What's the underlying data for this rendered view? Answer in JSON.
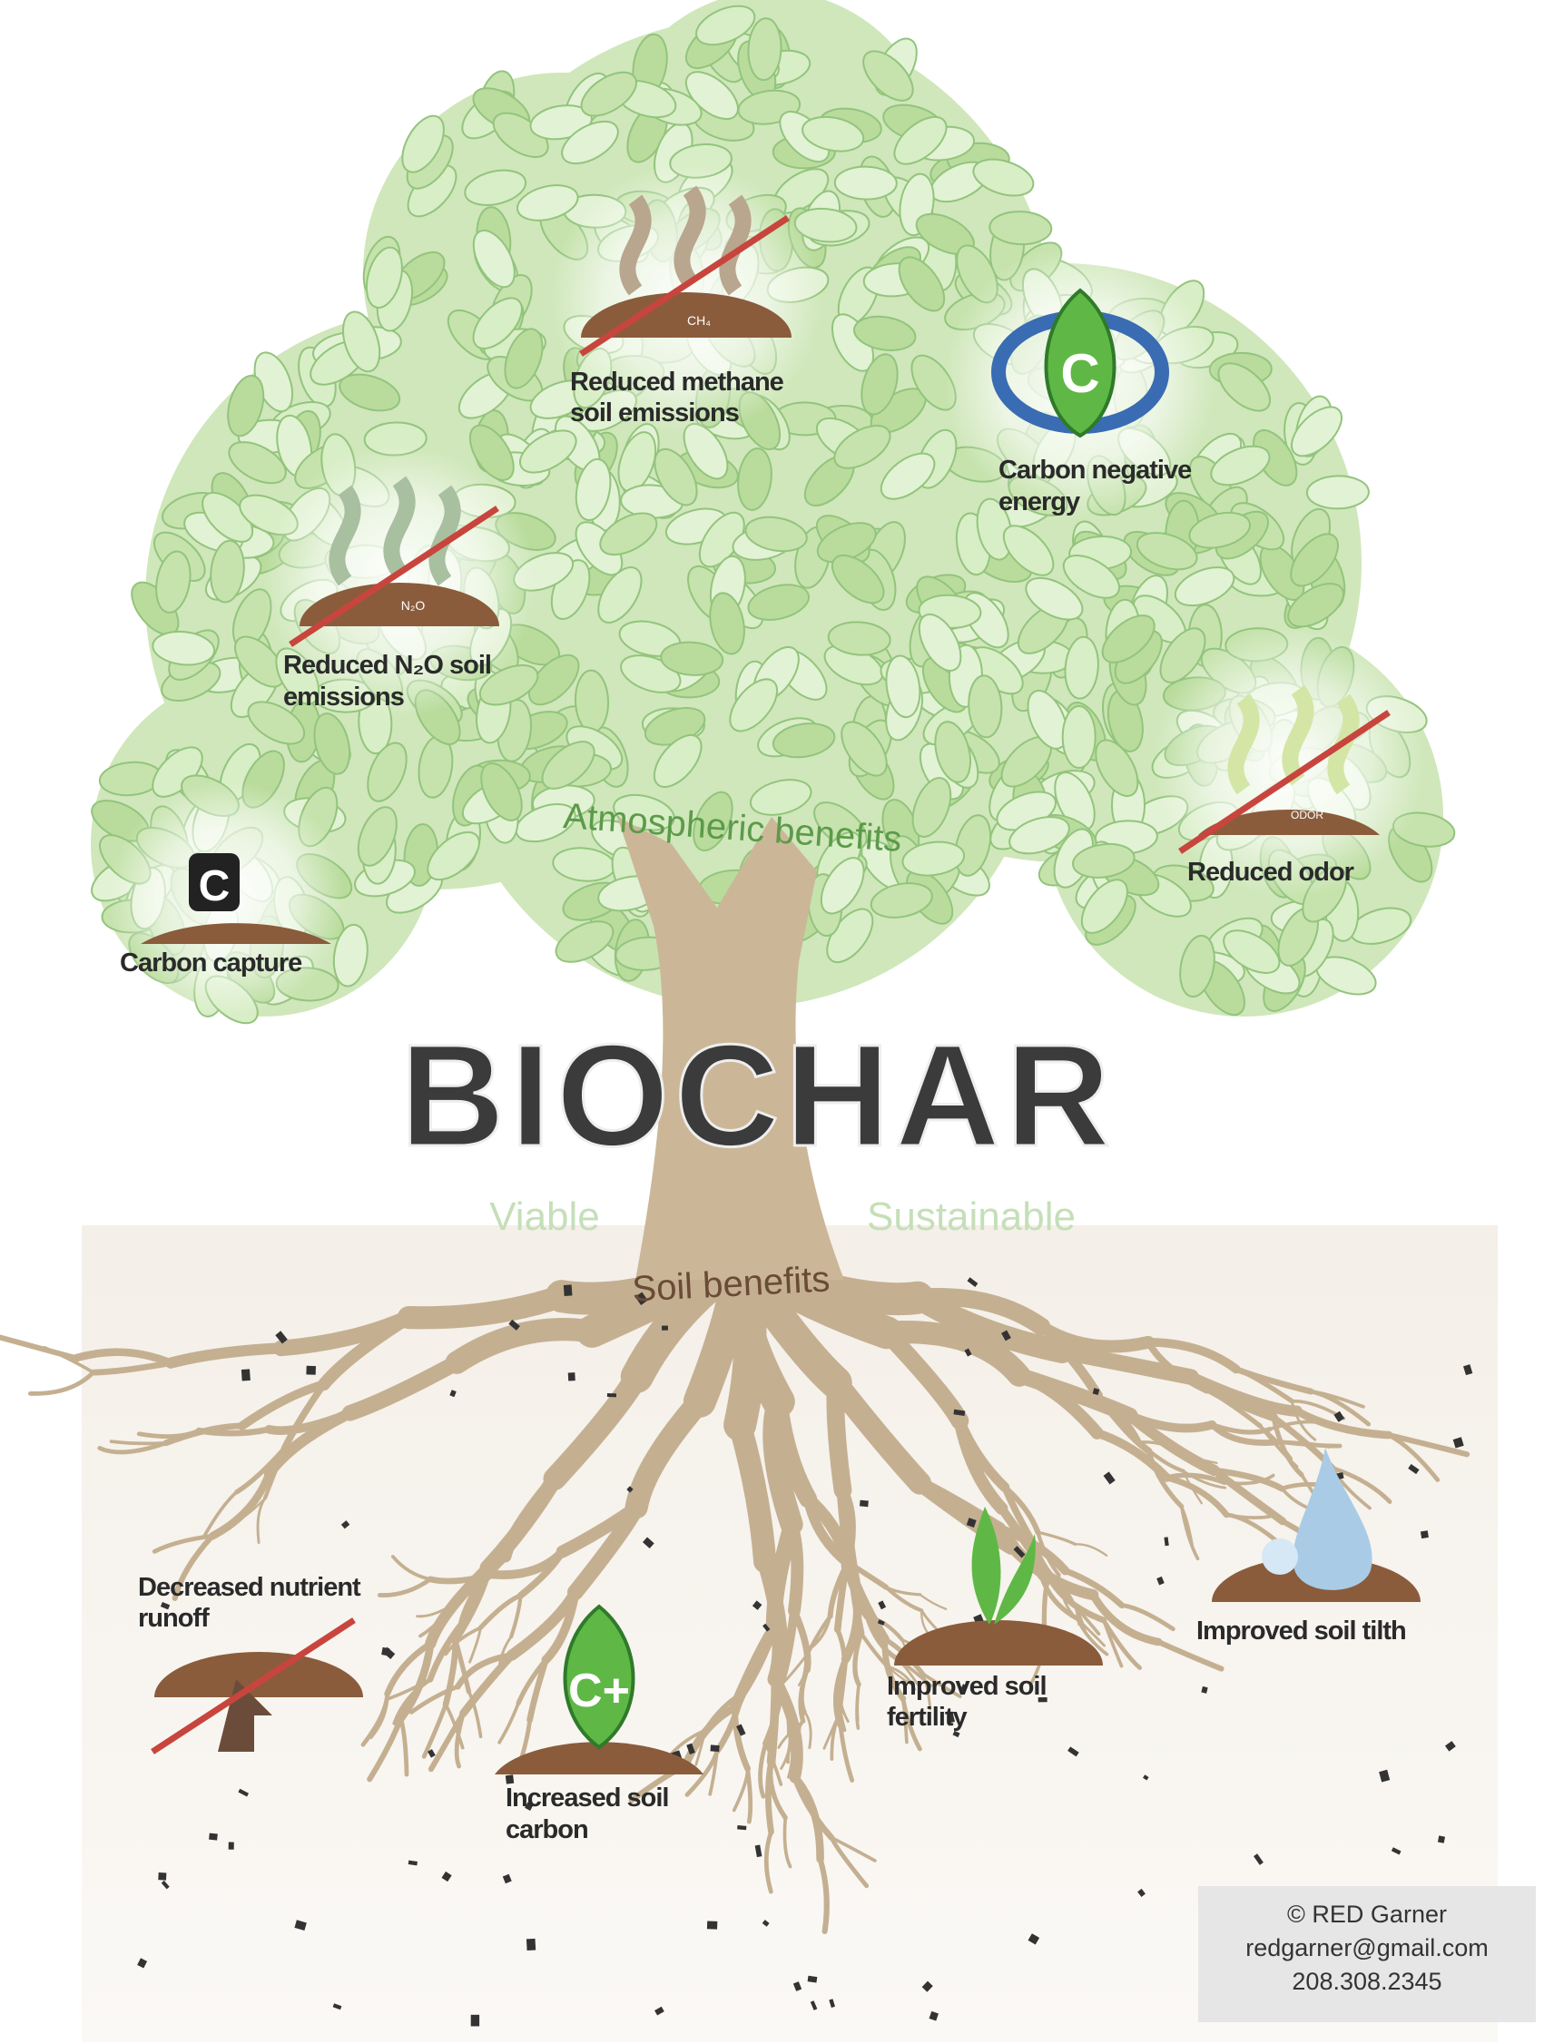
{
  "title": "BIOCHAR",
  "sections": {
    "atmospheric": "Atmospheric benefits",
    "soil": "Soil benefits"
  },
  "taglines": [
    "Viable",
    "Sustainable"
  ],
  "atmospheric_benefits": [
    {
      "lines": [
        "Reduced methane",
        "soil emissions"
      ],
      "icon_label": "CH₄"
    },
    {
      "lines": [
        "Carbon negative",
        "energy"
      ],
      "icon_label": "C"
    },
    {
      "lines": [
        "Reduced N₂O soil",
        "emissions"
      ],
      "icon_label": "N₂O"
    },
    {
      "lines": [
        "Reduced odor"
      ],
      "icon_label": "ODOR"
    },
    {
      "lines": [
        "Carbon capture"
      ],
      "icon_label": "C"
    }
  ],
  "soil_benefits": [
    {
      "lines": [
        "Decreased nutrient",
        "runoff"
      ]
    },
    {
      "lines": [
        "Increased soil",
        "carbon"
      ],
      "icon_label": "C+"
    },
    {
      "lines": [
        "Improved soil",
        "fertility"
      ]
    },
    {
      "lines": [
        "Improved soil tilth"
      ]
    }
  ],
  "credit": [
    "© RED Garner",
    "redgarner@gmail.com",
    "208.308.2345"
  ]
}
